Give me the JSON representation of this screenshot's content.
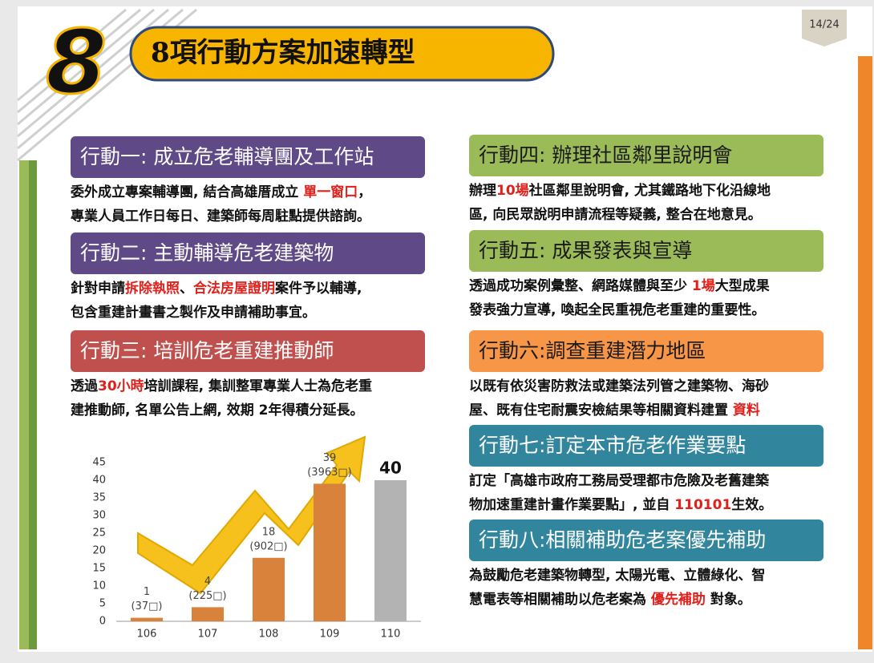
{
  "page": {
    "page_number": "14/24",
    "big_number": "8",
    "title": "8項行動方案加速轉型"
  },
  "actions": [
    {
      "title": "行動一: 成立危老輔導團及工作站",
      "color": "#5f4a87",
      "text_color": "#ffffff",
      "lines": [
        [
          {
            "text": "委外成立專案輔導團, 結合高雄厝成立 "
          },
          {
            "text": "單一窗口",
            "color": "#e0201b"
          },
          {
            "text": "，"
          }
        ],
        [
          {
            "text": "專業人員工作日每日、建築師每周駐點提供諮詢。"
          }
        ]
      ]
    },
    {
      "title": "行動二: 主動輔導危老建築物",
      "color": "#5f4a87",
      "text_color": "#ffffff",
      "lines": [
        [
          {
            "text": "針對申請"
          },
          {
            "text": "拆除執照",
            "color": "#e0201b"
          },
          {
            "text": "、"
          },
          {
            "text": "合法房屋證明",
            "color": "#e0201b"
          },
          {
            "text": "案件予以輔導,"
          }
        ],
        [
          {
            "text": "包含重建計畫書之製作及申請補助事宜。"
          }
        ]
      ]
    },
    {
      "title": "行動三: 培訓危老重建推動師",
      "color": "#c0504d",
      "text_color": "#ffffff",
      "lines": [
        [
          {
            "text": "透過"
          },
          {
            "text": "30小時",
            "color": "#e0201b"
          },
          {
            "text": "培訓課程, 集訓整軍專業人士為危老重"
          }
        ],
        [
          {
            "text": "建推動師, 名單公告上網, 效期 2年得積分延長。"
          }
        ]
      ]
    },
    {
      "title": "行動四: 辦理社區鄰里說明會",
      "color": "#9bbb59",
      "text_color": "#1a1a1a",
      "lines": [
        [
          {
            "text": "辦理"
          },
          {
            "text": "10場",
            "color": "#e0201b"
          },
          {
            "text": "社區鄰里說明會, 尤其鐵路地下化沿線地"
          }
        ],
        [
          {
            "text": "區, 向民眾說明申請流程等疑義, 整合在地意見。"
          }
        ]
      ]
    },
    {
      "title": "行動五: 成果發表與宣導",
      "color": "#9bbb59",
      "text_color": "#1a1a1a",
      "lines": [
        [
          {
            "text": "透過成功案例彙整、網路媒體與至少 "
          },
          {
            "text": "1場",
            "color": "#e0201b"
          },
          {
            "text": "大型成果"
          }
        ],
        [
          {
            "text": "發表強力宣導, 喚起全民重視危老重建的重要性。"
          }
        ]
      ]
    },
    {
      "title": "行動六:調查重建潛力地區",
      "color": "#f79646",
      "text_color": "#1a1a1a",
      "lines": [
        [
          {
            "text": "以既有依災害防救法或建築法列管之建築物、海砂"
          }
        ],
        [
          {
            "text": "屋、既有住宅耐震安檢結果等相關資料建置 "
          },
          {
            "text": "資料",
            "color": "#e0201b"
          }
        ]
      ]
    },
    {
      "title": "行動七:訂定本市危老作業要點",
      "color": "#31859c",
      "text_color": "#ffffff",
      "lines": [
        [
          {
            "text": "訂定「高雄市政府工務局受理都市危險及老舊建築"
          }
        ],
        [
          {
            "text": "物加速重建計畫作業要點」, 並自 "
          },
          {
            "text": "110101",
            "color": "#e0201b"
          },
          {
            "text": "生效。"
          }
        ]
      ]
    },
    {
      "title": "行動八:相關補助危老案優先補助",
      "color": "#31859c",
      "text_color": "#ffffff",
      "lines": [
        [
          {
            "text": "為鼓勵危老建築物轉型, 太陽光電、立體綠化、智"
          }
        ],
        [
          {
            "text": "慧電表等相關補助以危老案為 "
          },
          {
            "text": "優先補助",
            "color": "#e0201b"
          },
          {
            "text": " 對象。"
          }
        ]
      ]
    }
  ],
  "chart_data": {
    "type": "bar",
    "categories": [
      "106",
      "107",
      "108",
      "109",
      "110"
    ],
    "values": [
      1,
      4,
      18,
      39,
      40
    ],
    "value_labels": [
      "1",
      "4",
      "18",
      "39",
      "40"
    ],
    "notes": [
      "(37□)",
      "(225□)",
      "(902□)",
      "(3963□)",
      null
    ],
    "colors": [
      "#d9823b",
      "#d9823b",
      "#d9823b",
      "#d9823b",
      "#b3b3b3"
    ],
    "ylim": [
      0,
      45
    ],
    "yticks": [
      0,
      5,
      10,
      15,
      20,
      25,
      30,
      35,
      40,
      45
    ]
  }
}
